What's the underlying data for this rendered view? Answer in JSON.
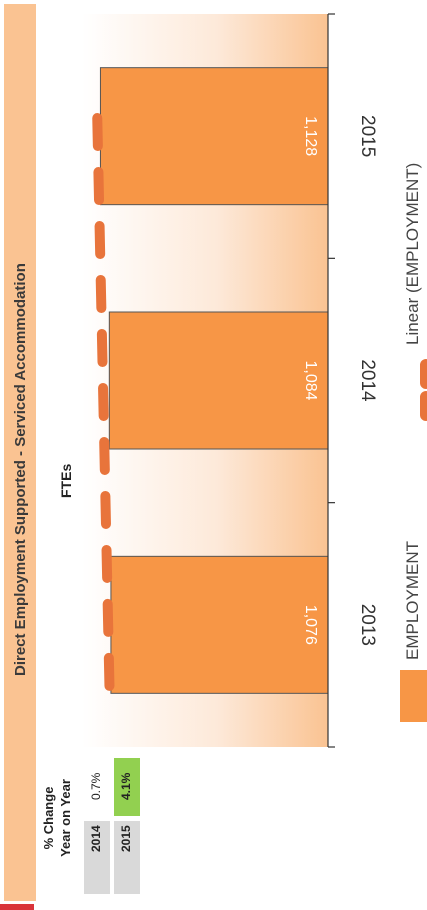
{
  "title": "Direct Employment Supported - Serviced Accommodation",
  "yoy_table": {
    "header_line1": "% Change",
    "header_line2": "Year on Year",
    "rows": [
      {
        "year": "2014",
        "change": "0.7%",
        "highlight": false
      },
      {
        "year": "2015",
        "change": "4.1%",
        "highlight": true
      }
    ]
  },
  "colors": {
    "bar": "#f79646",
    "bar_border": "#555555",
    "trendline": "#e8743b",
    "title_band": "#fac392",
    "highlight_cell": "#92d050",
    "year_cell": "#d9d9d9"
  },
  "chart_data": {
    "type": "bar",
    "title": "FTEs",
    "categories": [
      "2013",
      "2014",
      "2015"
    ],
    "series": [
      {
        "name": "EMPLOYMENT",
        "values": [
          1076,
          1084,
          1128
        ],
        "labels": [
          "1,076",
          "1,084",
          "1,128"
        ]
      }
    ],
    "trendline": {
      "name": "Linear (EMPLOYMENT)",
      "type": "linear"
    },
    "orientation": "rotated-90",
    "legend": "bottom"
  }
}
